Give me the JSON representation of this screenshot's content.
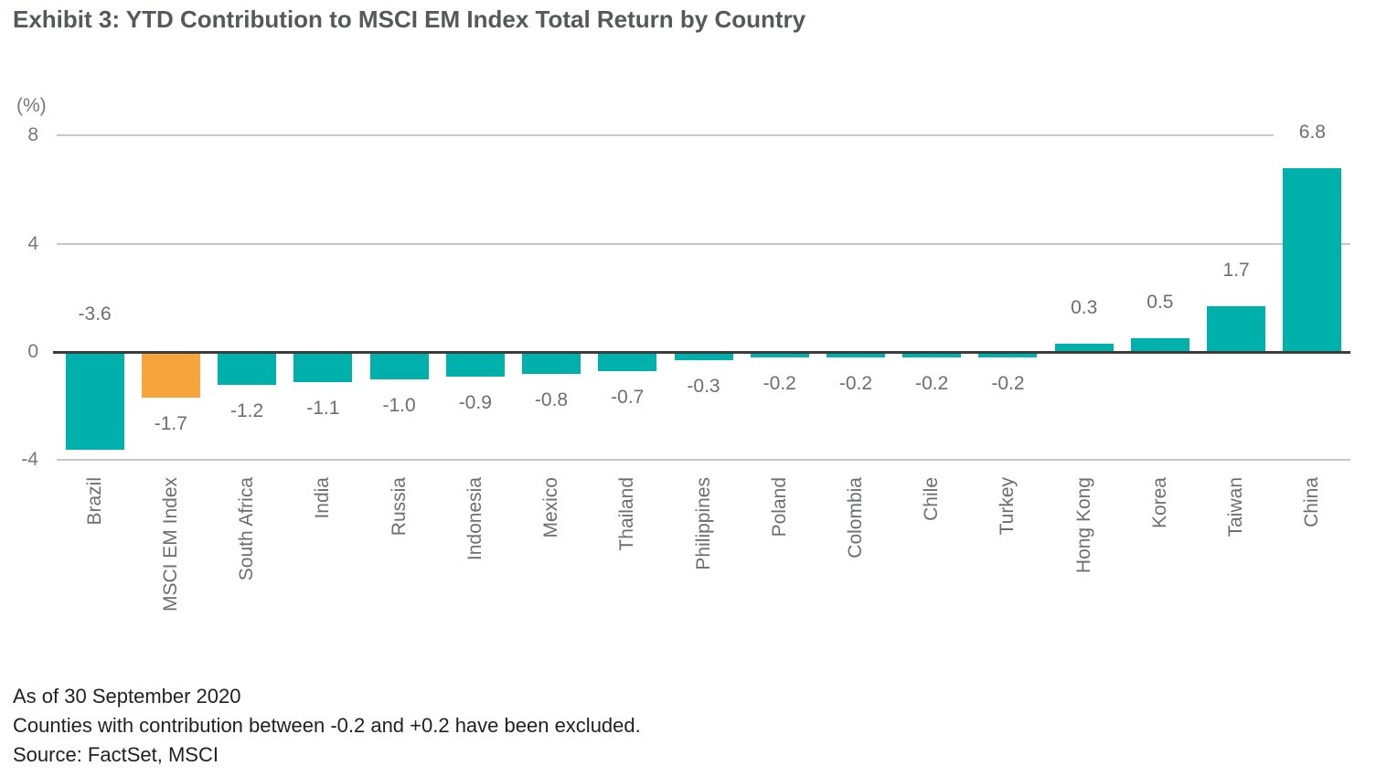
{
  "chart_data": {
    "type": "bar",
    "title": "Exhibit 3: YTD Contribution to MSCI EM Index Total Return by Country",
    "axis_unit_label": "(%)",
    "categories": [
      "Brazil",
      "MSCI EM Index",
      "South Africa",
      "India",
      "Russia",
      "Indonesia",
      "Mexico",
      "Thailand",
      "Philippines",
      "Poland",
      "Colombia",
      "Chile",
      "Turkey",
      "Hong Kong",
      "Korea",
      "Taiwan",
      "China"
    ],
    "values": [
      -3.6,
      -1.7,
      -1.2,
      -1.1,
      -1.0,
      -0.9,
      -0.8,
      -0.7,
      -0.3,
      -0.2,
      -0.2,
      -0.2,
      -0.2,
      0.3,
      0.5,
      1.7,
      6.8
    ],
    "value_labels": [
      "-3.6",
      "-1.7",
      "-1.2",
      "-1.1",
      "-1.0",
      "-0.9",
      "-0.8",
      "-0.7",
      "-0.3",
      "-0.2",
      "-0.2",
      "-0.2",
      "-0.2",
      "0.3",
      "0.5",
      "1.7",
      "6.8"
    ],
    "highlight_category": "MSCI EM Index",
    "yticks": [
      8,
      4,
      0,
      -4
    ],
    "ylim": [
      -4,
      8
    ],
    "grid": true,
    "legend_position": "none",
    "colors": {
      "bar": "#00b0ab",
      "highlight": "#f8a43c",
      "gridline": "#c6c7c9",
      "zero_line": "#3b3c3d",
      "tick_label": "#77787b",
      "value_label": "#6d6e71",
      "category_label": "#6d6e71",
      "title": "#57585b",
      "footnote": "#1f2021"
    }
  },
  "footer": {
    "lines": [
      "As of 30 September 2020",
      "Counties with contribution between -0.2 and +0.2 have been excluded.",
      "Source: FactSet, MSCI"
    ]
  }
}
